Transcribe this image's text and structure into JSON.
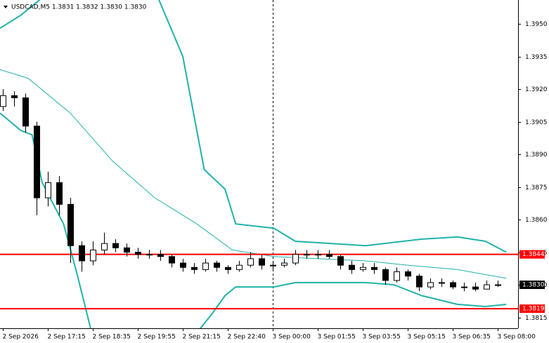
{
  "chart_data": {
    "type": "candlestick",
    "title": "USDCAD,M5  1.3831 1.3832 1.3830 1.3830",
    "xlim": [
      -0.25,
      45.8
    ],
    "xticks": [
      {
        "value": 0,
        "label": "2 Sep 2026"
      },
      {
        "value": 4,
        "label": "2 Sep 17:15"
      },
      {
        "value": 8,
        "label": "2 Sep 18:35"
      },
      {
        "value": 12,
        "label": "2 Sep 19:55"
      },
      {
        "value": 16,
        "label": "2 Sep 21:15"
      },
      {
        "value": 20,
        "label": "2 Sep 22:40"
      },
      {
        "value": 24,
        "label": "3 Sep 00:00"
      },
      {
        "value": 28,
        "label": "3 Sep 01:55"
      },
      {
        "value": 32,
        "label": "3 Sep 03:55"
      },
      {
        "value": 36,
        "label": "3 Sep 05:15"
      },
      {
        "value": 40,
        "label": "3 Sep 06:35"
      },
      {
        "value": 44,
        "label": "3 Sep 08:00"
      }
    ],
    "day_separator": 24,
    "ylim": [
      1.381,
      1.3961
    ],
    "yticks": [
      {
        "value": 1.395,
        "label": "1.3950"
      },
      1.3935,
      {
        "value": 1.392,
        "label": "1.3920"
      },
      1.3905,
      {
        "value": 1.389,
        "label": "1.3890"
      },
      1.3875,
      {
        "value": 1.386,
        "label": "1.3860"
      },
      1.3845,
      {
        "value": 1.383,
        "label": "1.3830"
      },
      1.3815
    ],
    "open": [
      1.3912,
      1.3917,
      1.3916,
      1.3903,
      1.387,
      1.3877,
      1.3867,
      1.3848,
      1.3841,
      1.3846,
      1.3849,
      1.3847,
      1.3845,
      1.3844,
      1.3844,
      1.3843,
      1.384,
      1.3838,
      1.3837,
      1.384,
      1.3838,
      1.3837,
      1.3839,
      1.3842,
      1.3839,
      1.3839,
      1.384,
      1.3844,
      1.3844,
      1.3844,
      1.3843,
      1.3839,
      1.3837,
      1.3838,
      1.3837,
      1.3832,
      1.3836,
      1.3834,
      1.3829,
      1.3831,
      1.3831,
      1.3829,
      1.3829,
      1.3828,
      1.383
    ],
    "high": [
      1.392,
      1.3919,
      1.3918,
      1.3905,
      1.3882,
      1.388,
      1.387,
      1.385,
      1.385,
      1.3854,
      1.3851,
      1.3849,
      1.3847,
      1.3846,
      1.3846,
      1.3844,
      1.3842,
      1.384,
      1.3842,
      1.3841,
      1.3839,
      1.3841,
      1.3845,
      1.3844,
      1.3841,
      1.3842,
      1.3846,
      1.3846,
      1.3846,
      1.3846,
      1.3844,
      1.3841,
      1.384,
      1.384,
      1.3838,
      1.3838,
      1.3837,
      1.3835,
      1.3833,
      1.3833,
      1.3832,
      1.3831,
      1.3831,
      1.3832,
      1.3832
    ],
    "low": [
      1.391,
      1.3912,
      1.39,
      1.3862,
      1.3866,
      1.3862,
      1.384,
      1.3836,
      1.3839,
      1.3844,
      1.3845,
      1.3843,
      1.3842,
      1.3842,
      1.3841,
      1.3838,
      1.3836,
      1.3835,
      1.3836,
      1.3836,
      1.3835,
      1.3836,
      1.3838,
      1.3837,
      1.3837,
      1.3838,
      1.3839,
      1.3842,
      1.3842,
      1.3842,
      1.3837,
      1.3835,
      1.3836,
      1.3835,
      1.383,
      1.3831,
      1.3832,
      1.3827,
      1.3828,
      1.3829,
      1.3828,
      1.3827,
      1.3827,
      1.3828,
      1.3829
    ],
    "close": [
      1.3917,
      1.3916,
      1.3903,
      1.387,
      1.3877,
      1.3867,
      1.3848,
      1.3841,
      1.3846,
      1.3849,
      1.3847,
      1.3845,
      1.3844,
      1.3844,
      1.3843,
      1.384,
      1.3838,
      1.3837,
      1.384,
      1.3838,
      1.3837,
      1.3839,
      1.3842,
      1.3839,
      1.3839,
      1.384,
      1.3844,
      1.3844,
      1.3844,
      1.3843,
      1.3839,
      1.3837,
      1.3838,
      1.3837,
      1.3832,
      1.3836,
      1.3834,
      1.3829,
      1.3831,
      1.3831,
      1.3829,
      1.3829,
      1.3828,
      1.383,
      1.383
    ],
    "candle_color": "#000000",
    "bands": [
      {
        "color": "#20b2aa",
        "width": 2,
        "x": [
          -0.25,
          1.6,
          3.5,
          8.6,
          13.8,
          16,
          17.9,
          19.75,
          20.7,
          24.1,
          26,
          32.25,
          37.25,
          40.4,
          42.9,
          44.75
        ],
        "values": [
          1.3948,
          1.3954,
          1.3962,
          null,
          1.3962,
          1.3935,
          1.3883,
          1.3874,
          1.3858,
          1.3856,
          1.385,
          1.3848,
          1.3851,
          1.3852,
          1.385,
          1.3845
        ]
      },
      {
        "color": "#20b2aa",
        "width": 1,
        "x": [
          -0.25,
          2.25,
          6,
          9.75,
          13.5,
          17.25,
          20.4,
          24.1,
          27.9,
          32.25,
          36,
          40.4,
          44.75
        ],
        "values": [
          1.3929,
          1.3925,
          1.3909,
          1.3887,
          1.387,
          1.3858,
          1.3846,
          1.3843,
          1.3842,
          1.3841,
          1.3839,
          1.3837,
          1.3833
        ]
      },
      {
        "color": "#20b2aa",
        "width": 2,
        "x": [
          -0.25,
          1.6,
          2.6,
          3.5,
          5.4,
          6.6,
          7.9,
          10,
          17.25,
          18.5,
          19.75,
          20.7,
          24.1,
          26,
          32.25,
          34.75,
          37.25,
          40.4,
          42.9,
          44.75
        ],
        "values": [
          1.3909,
          1.3901,
          1.3899,
          1.3877,
          1.3858,
          1.3835,
          1.3808,
          null,
          1.3808,
          1.3816,
          1.3825,
          1.3829,
          1.3829,
          1.3831,
          1.3831,
          1.383,
          1.3825,
          1.3821,
          1.382,
          1.3821
        ]
      }
    ],
    "levels": [
      1.3844,
      1.3819
    ],
    "level_color": "#ff0000",
    "last_price": {
      "value": 1.383,
      "label": "1.3830"
    }
  }
}
